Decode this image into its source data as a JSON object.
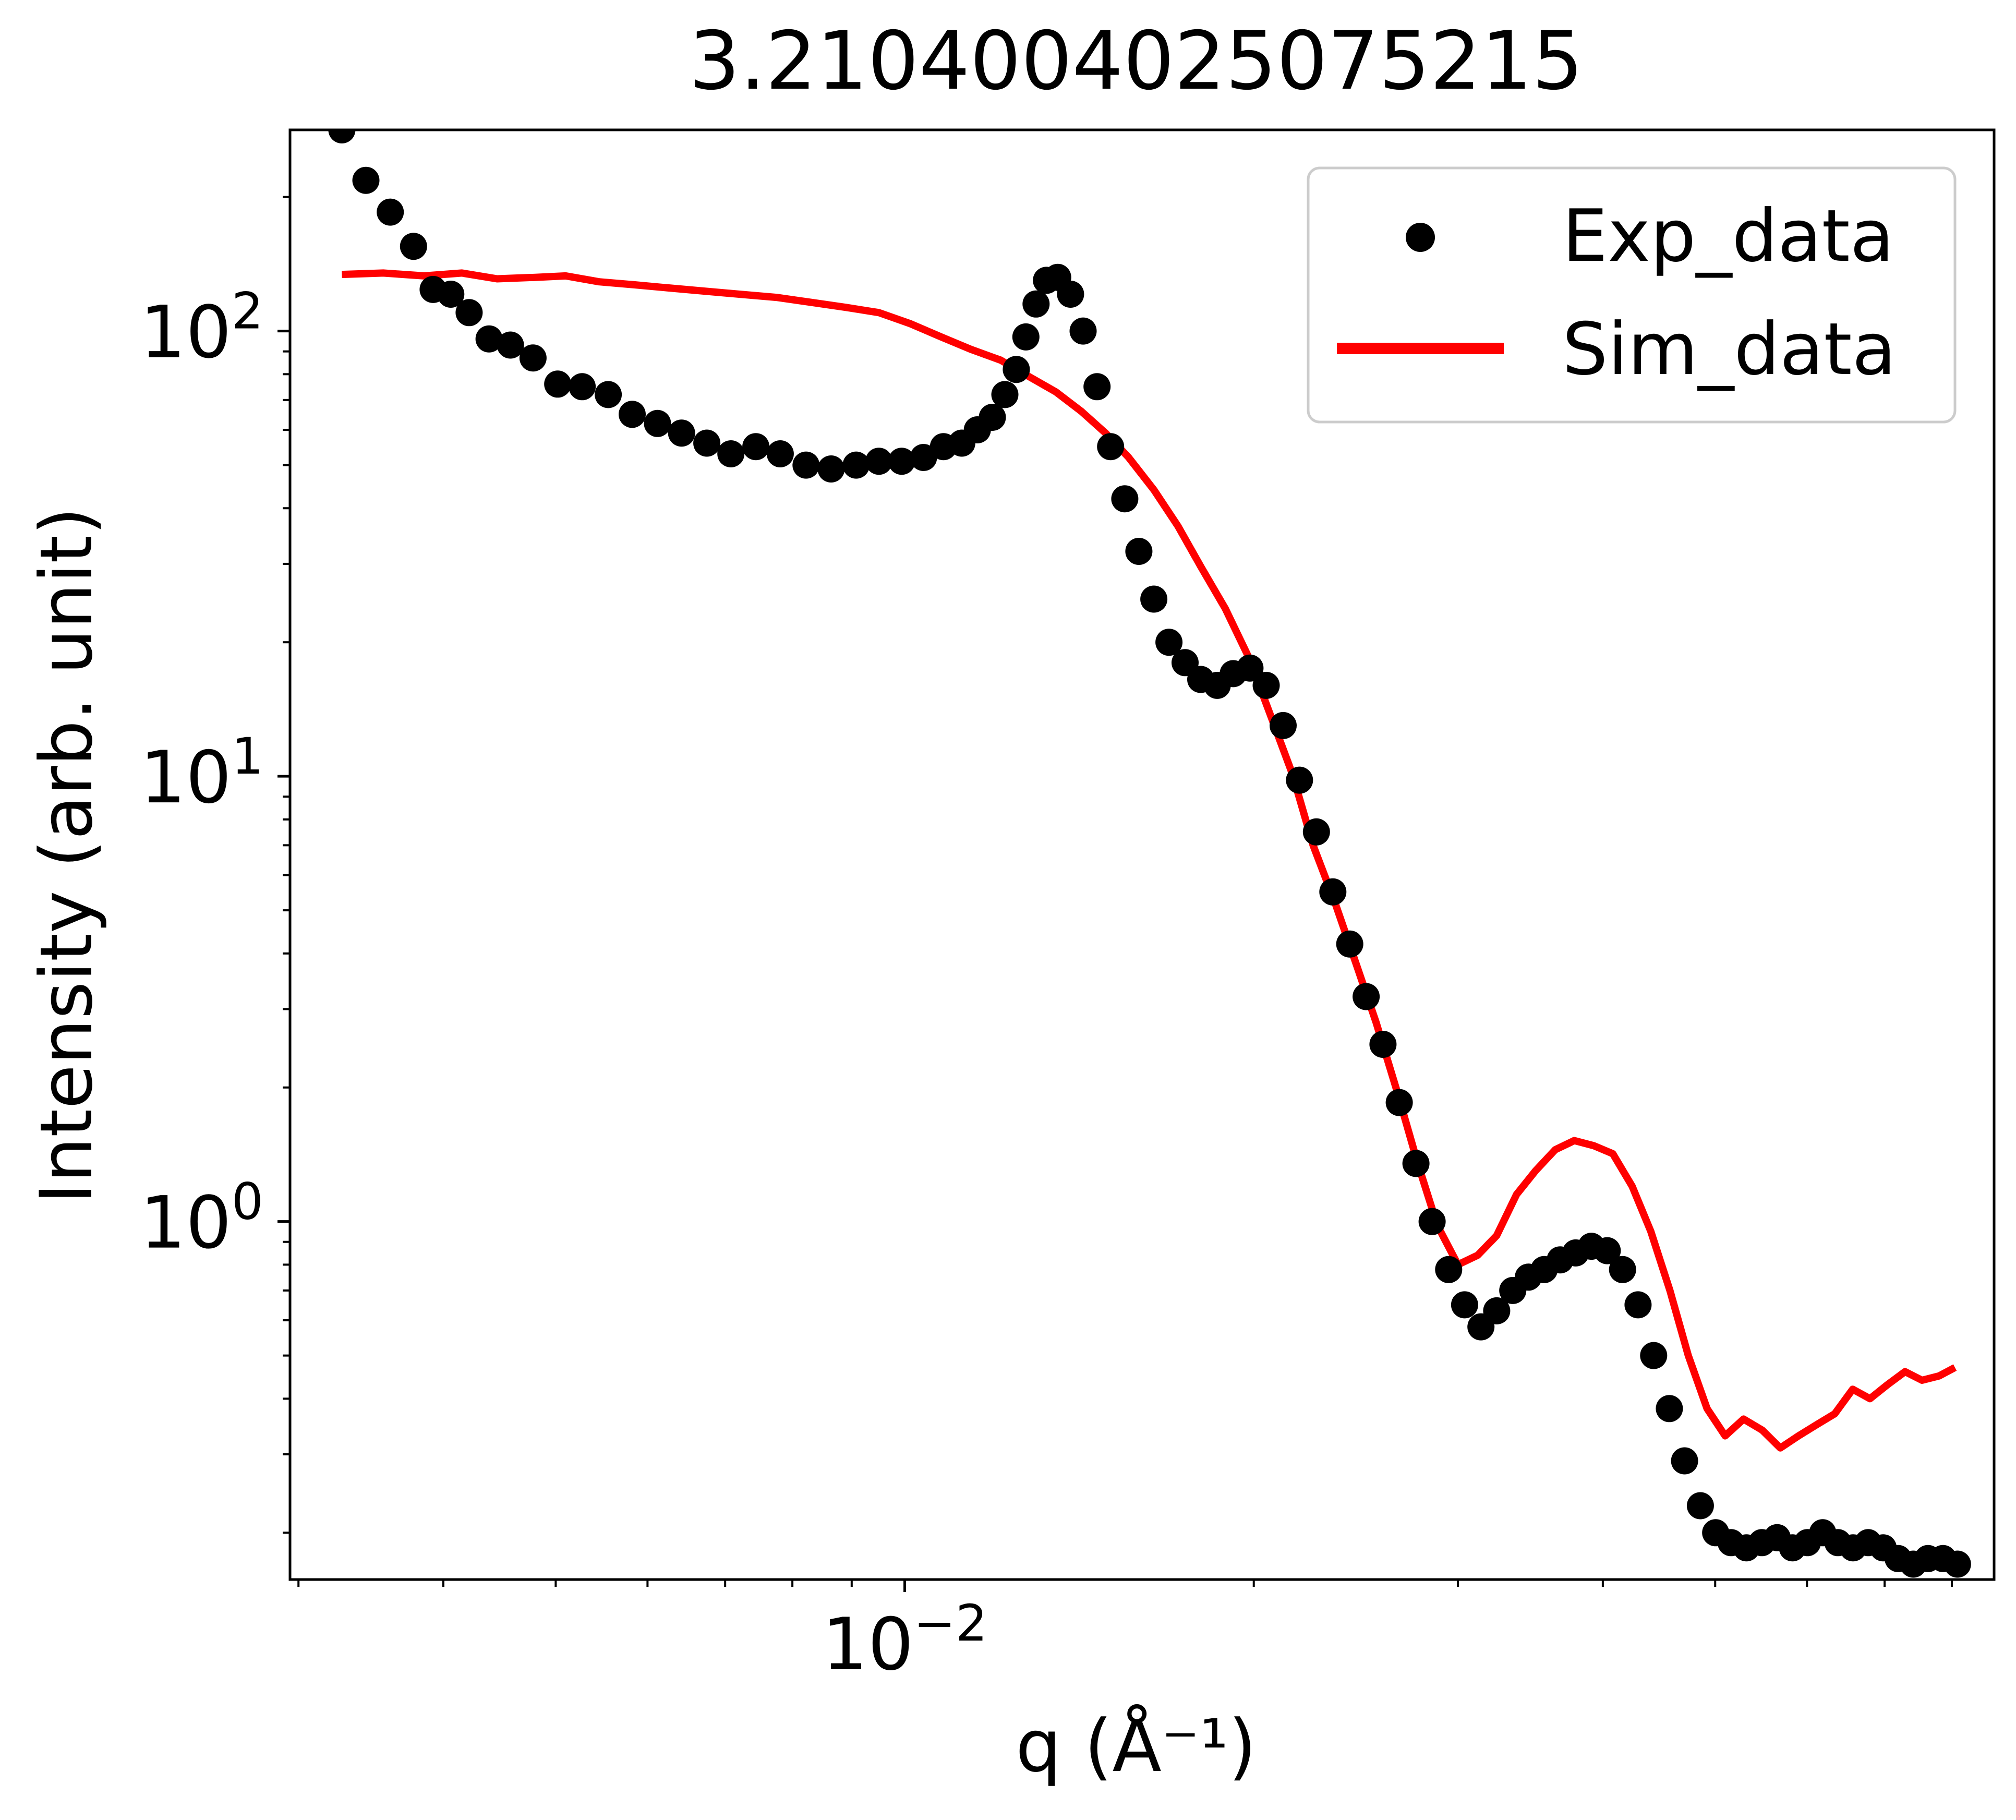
{
  "chart_data": {
    "type": "scatter",
    "title": "3.2104004025075215",
    "xlabel": "q (Å⁻¹)",
    "ylabel": "Intensity (arb. unit)",
    "xscale": "log",
    "yscale": "log",
    "xlim": [
      0.00295,
      0.087
    ],
    "ylim": [
      0.157,
      283
    ],
    "x_ticks": [
      {
        "value": 0.01,
        "base": "10",
        "exp": "−2"
      }
    ],
    "y_ticks": [
      {
        "value": 1,
        "base": "10",
        "exp": "0"
      },
      {
        "value": 10,
        "base": "10",
        "exp": "1"
      },
      {
        "value": 100,
        "base": "10",
        "exp": "2"
      }
    ],
    "grid": false,
    "legend_position": "top-right",
    "series": [
      {
        "name": "Exp_data",
        "kind": "scatter",
        "color": "#000000",
        "x": [
          0.00327,
          0.00343,
          0.0036,
          0.00377,
          0.00392,
          0.00406,
          0.00421,
          0.00438,
          0.00457,
          0.00478,
          0.00502,
          0.00527,
          0.00555,
          0.00582,
          0.00612,
          0.00642,
          0.00675,
          0.00708,
          0.00744,
          0.00781,
          0.00822,
          0.00864,
          0.00908,
          0.0095,
          0.00994,
          0.01038,
          0.0108,
          0.0112,
          0.01155,
          0.0119,
          0.0122,
          0.01248,
          0.01272,
          0.01298,
          0.01325,
          0.01355,
          0.0139,
          0.01425,
          0.01465,
          0.01505,
          0.01548,
          0.01592,
          0.0164,
          0.0169,
          0.01745,
          0.018,
          0.0186,
          0.0192,
          0.01985,
          0.0205,
          0.0212,
          0.0219,
          0.02265,
          0.0234,
          0.0242,
          0.025,
          0.02585,
          0.0267,
          0.0276,
          0.0285,
          0.02945,
          0.0304,
          0.0314,
          0.0324,
          0.03345,
          0.0345,
          0.0356,
          0.03675,
          0.0379,
          0.0391,
          0.04035,
          0.0416,
          0.0429,
          0.04425,
          0.04565,
          0.04705,
          0.04855,
          0.05005,
          0.0516,
          0.0532,
          0.05485,
          0.05655,
          0.0583,
          0.06005,
          0.0619,
          0.0638,
          0.06575,
          0.06775,
          0.0698,
          0.0719,
          0.0741,
          0.0763,
          0.0786,
          0.0809
        ],
        "y": [
          283,
          218,
          185,
          155,
          124,
          121,
          110,
          96,
          93,
          87,
          76,
          75,
          72,
          65,
          62,
          59,
          56,
          53,
          55,
          53,
          50,
          49,
          50,
          51,
          51,
          52,
          55,
          56,
          60,
          64,
          72,
          82,
          97,
          115,
          130,
          132,
          121,
          100,
          75,
          55,
          42,
          32,
          25,
          20,
          18,
          16.5,
          16.0,
          17.0,
          17.5,
          16,
          13,
          9.8,
          7.5,
          5.5,
          4.2,
          3.2,
          2.5,
          1.85,
          1.35,
          1.0,
          0.78,
          0.65,
          0.58,
          0.63,
          0.7,
          0.75,
          0.78,
          0.82,
          0.85,
          0.88,
          0.86,
          0.78,
          0.65,
          0.5,
          0.38,
          0.29,
          0.23,
          0.2,
          0.19,
          0.185,
          0.19,
          0.195,
          0.185,
          0.19,
          0.2,
          0.19,
          0.185,
          0.19,
          0.185,
          0.175,
          0.17,
          0.175,
          0.175,
          0.17
        ]
      },
      {
        "name": "Sim_data",
        "kind": "line",
        "color": "#ff0000",
        "x": [
          0.00327,
          0.00355,
          0.00385,
          0.00415,
          0.00445,
          0.0048,
          0.0051,
          0.00545,
          0.00585,
          0.00625,
          0.0067,
          0.0072,
          0.00775,
          0.0083,
          0.0089,
          0.0095,
          0.0101,
          0.01075,
          0.0114,
          0.0121,
          0.0128,
          0.0135,
          0.0142,
          0.0149,
          0.0156,
          0.0164,
          0.0172,
          0.018,
          0.0189,
          0.0198,
          0.0207,
          0.0216,
          0.0225,
          0.0235,
          0.0245,
          0.0255,
          0.0266,
          0.0277,
          0.0288,
          0.03,
          0.0312,
          0.0324,
          0.0337,
          0.035,
          0.0364,
          0.0378,
          0.0393,
          0.0408,
          0.0424,
          0.044,
          0.0457,
          0.0474,
          0.0492,
          0.051,
          0.0529,
          0.0549,
          0.0569,
          0.059,
          0.0612,
          0.0634,
          0.0657,
          0.068,
          0.0704,
          0.0729,
          0.0754,
          0.078,
          0.0805
        ],
        "y": [
          134,
          135,
          133,
          135,
          131,
          132,
          133,
          129,
          127,
          125,
          123,
          121,
          119,
          116,
          113,
          110,
          104,
          97,
          91,
          86,
          79,
          73,
          66,
          59,
          52,
          44,
          36.5,
          29.6,
          23.8,
          18.5,
          13.6,
          10.1,
          7.0,
          5.2,
          3.8,
          2.8,
          1.95,
          1.35,
          0.98,
          0.8,
          0.84,
          0.93,
          1.15,
          1.3,
          1.45,
          1.52,
          1.48,
          1.42,
          1.2,
          0.95,
          0.7,
          0.5,
          0.38,
          0.33,
          0.36,
          0.34,
          0.31,
          0.33,
          0.35,
          0.37,
          0.42,
          0.4,
          0.43,
          0.46,
          0.44,
          0.45,
          0.47
        ]
      }
    ]
  }
}
